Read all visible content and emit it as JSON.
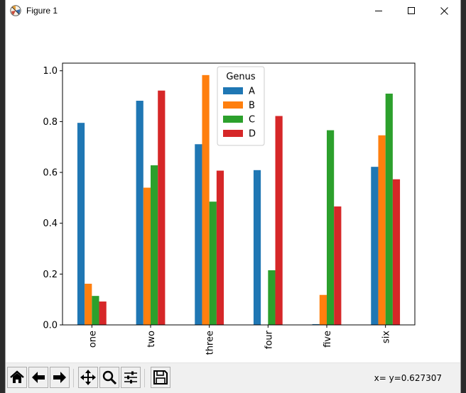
{
  "window": {
    "title": "Figure 1"
  },
  "status": {
    "coordinates": "x= y=0.627307"
  },
  "toolbar": {
    "buttons": [
      "home-icon",
      "back-arrow-icon",
      "forward-arrow-icon",
      "pan-move-icon",
      "zoom-magnifier-icon",
      "configure-subplots-icon",
      "save-floppy-icon"
    ]
  },
  "colors": {
    "A": "#1f77b4",
    "B": "#ff7f0e",
    "C": "#2ca02c",
    "D": "#d62728"
  },
  "chart_data": {
    "type": "bar",
    "categories": [
      "one",
      "two",
      "three",
      "four",
      "five",
      "six"
    ],
    "series": [
      {
        "name": "A",
        "values": [
          0.795,
          0.882,
          0.711,
          0.609,
          0.003,
          0.622
        ]
      },
      {
        "name": "B",
        "values": [
          0.162,
          0.54,
          0.983,
          0.0,
          0.118,
          0.746
        ]
      },
      {
        "name": "C",
        "values": [
          0.114,
          0.628,
          0.485,
          0.215,
          0.766,
          0.91
        ]
      },
      {
        "name": "D",
        "values": [
          0.092,
          0.922,
          0.607,
          0.822,
          0.466,
          0.573
        ]
      }
    ],
    "legend_title": "Genus",
    "legend_position": "top-center",
    "ylim": [
      0,
      1.03
    ],
    "yticks": [
      0.0,
      0.2,
      0.4,
      0.6,
      0.8,
      1.0
    ],
    "ytick_labels": [
      "0.0",
      "0.2",
      "0.4",
      "0.6",
      "0.8",
      "1.0"
    ],
    "grid": false
  }
}
